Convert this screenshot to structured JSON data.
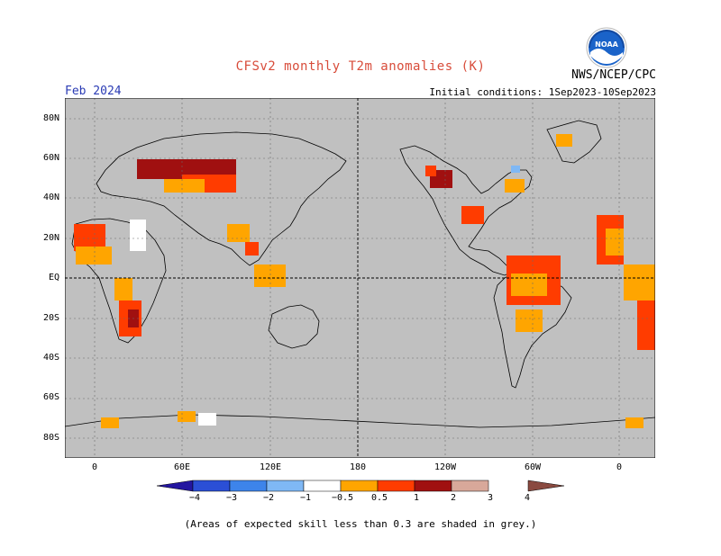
{
  "header": {
    "title": "CFSv2 monthly T2m anomalies (K)",
    "month": "Feb 2024",
    "initial_conditions": "Initial conditions: 1Sep2023-10Sep2023",
    "agency": "NWS/NCEP/CPC",
    "logo_text": "NOAA"
  },
  "map": {
    "lat_labels": [
      "80N",
      "60N",
      "40N",
      "20N",
      "EQ",
      "20S",
      "40S",
      "60S",
      "80S"
    ],
    "lon_labels": [
      "0",
      "60E",
      "120E",
      "180",
      "120W",
      "60W",
      "0"
    ],
    "background_color": "#c0c0c0",
    "grid": "dotted"
  },
  "legend": {
    "labels": [
      "−4",
      "−3",
      "−2",
      "−1",
      "−0.5",
      "0.5",
      "1",
      "2",
      "3",
      "4"
    ],
    "colors": [
      "#2416a0",
      "#2b4fd6",
      "#3d84ea",
      "#7fb8f5",
      "#ffffff",
      "#ffa500",
      "#ff3c00",
      "#a01010",
      "#d8a89a",
      "#8a4a40"
    ]
  },
  "footnote": "(Areas of expected skill less than 0.3 are shaded in grey.)"
}
